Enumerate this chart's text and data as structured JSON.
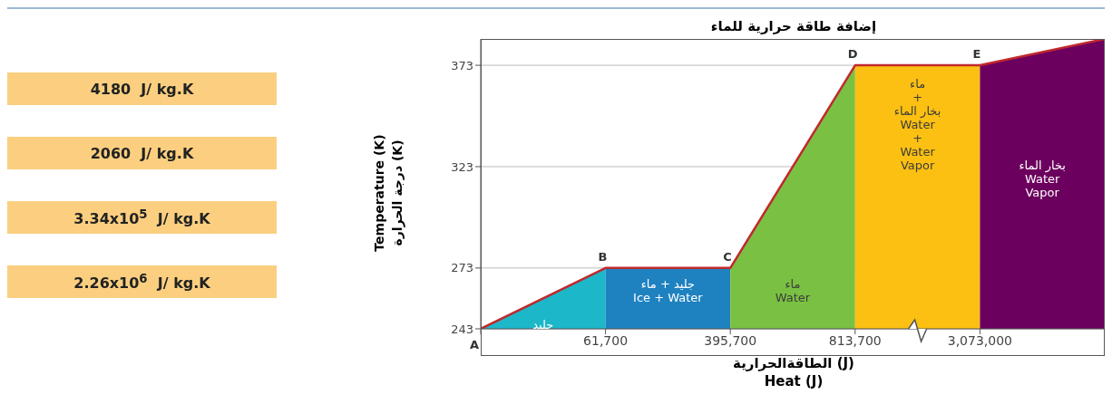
{
  "chart_data": {
    "type": "area",
    "title": "إضافة طاقة حرارية للماء",
    "xlabel": "الطاقةالحرارية (J)\nHeat (J)",
    "ylabel": "Temperature (K)\nدرجة الحرارة (K)",
    "categories": [
      null,
      "61,700",
      "395,700",
      "813,700",
      "3,073,000",
      null
    ],
    "series": [
      {
        "name": "جليد",
        "color": "#1cb8c9",
        "values": [
          243,
          273,
          null,
          null,
          null,
          null
        ]
      },
      {
        "name": "جليد + ماء\nIce + Water",
        "color": "#1f82c0",
        "values": [
          null,
          273,
          273,
          null,
          null,
          null
        ]
      },
      {
        "name": "ماء\nWater",
        "color": "#7ac143",
        "values": [
          null,
          null,
          273,
          373,
          null,
          null
        ]
      },
      {
        "name": "ماء\n+\nبخار الماء\nWater\n+\nWater\nVapor",
        "color": "#fcc012",
        "values": [
          null,
          null,
          null,
          373,
          373,
          null
        ]
      },
      {
        "name": "بخار الماء\nWater\nVapor",
        "color": "#6c005e",
        "values": [
          null,
          null,
          null,
          null,
          373,
          386
        ]
      },
      {
        "type": "line",
        "color": "#c0282d",
        "values": [
          243,
          273,
          273,
          373,
          373,
          386
        ]
      }
    ],
    "ylim": [
      243,
      386
    ],
    "yticks": [
      243,
      273,
      323,
      373
    ],
    "grid": "y",
    "annotations": [
      "4180  J/ kg.K",
      "2060  J/ kg.K",
      "3.34x10$^{5}$  J/ kg.K",
      "2.26x10$^{6}$  J/ kg.K",
      {
        "text": "B",
        "x": "61,700",
        "y": 273
      },
      {
        "text": "C",
        "x": "395,700",
        "y": 273
      },
      {
        "text": "D",
        "x": "813,700",
        "y": 373
      },
      {
        "text": "E",
        "x": "3,073,000",
        "y": 373
      },
      "A"
    ]
  }
}
